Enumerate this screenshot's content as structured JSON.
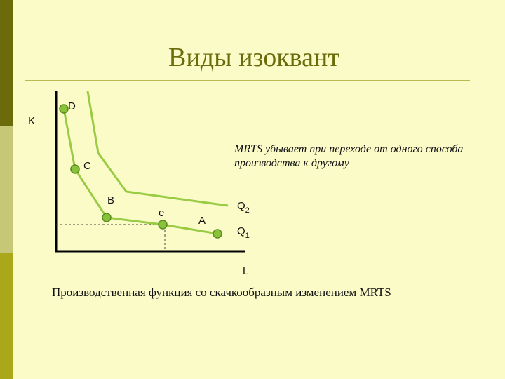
{
  "slide": {
    "title": "Виды изоквант",
    "note": "MRTS  убывает при переходе от одного способа производства к другому",
    "caption": "Производственная функция  со скачкообразным изменением MRTS"
  },
  "diagram": {
    "axis_y_label": "K",
    "axis_x_label": "L",
    "points": {
      "D": "D",
      "C": "C",
      "B": "B",
      "e": "e",
      "A": "A"
    },
    "curve_labels": {
      "q2_base": "Q",
      "q2_sub": "2",
      "q1_base": "Q",
      "q1_sub": "1"
    },
    "colors": {
      "curve": "#99cc44",
      "point_fill": "#88c23a",
      "point_stroke": "#5a8a1e",
      "axis": "#000000",
      "accent": "#6b6b0c"
    }
  }
}
